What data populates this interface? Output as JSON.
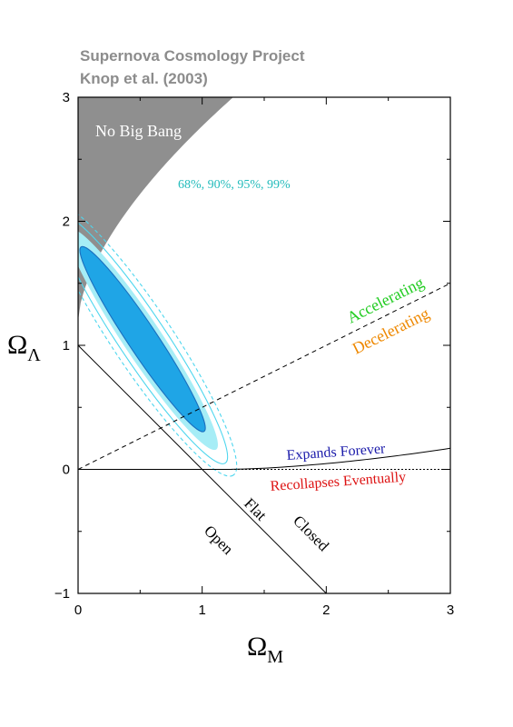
{
  "header": {
    "line1": "Supernova Cosmology Project",
    "line2": "Knop et al. (2003)"
  },
  "chart_data": {
    "type": "contour",
    "xlabel_main": "Ω",
    "xlabel_sub": "M",
    "ylabel_main": "Ω",
    "ylabel_sub": "Λ",
    "xlim": [
      0,
      3
    ],
    "ylim": [
      -1,
      3
    ],
    "xticks": [
      "0",
      "1",
      "2",
      "3"
    ],
    "yticks": [
      "−1",
      "0",
      "1",
      "2",
      "3"
    ],
    "confidence_levels": "68%, 90%, 95%, 99%",
    "best_fit_ellipse": {
      "center": [
        0.52,
        1.05
      ],
      "major_axis_slope": 1.5
    },
    "lines": {
      "flat": {
        "points": [
          [
            0,
            1
          ],
          [
            2,
            -1
          ]
        ]
      },
      "accel_decel": {
        "points": [
          [
            0,
            0
          ],
          [
            3,
            1.5
          ]
        ],
        "style": "dashed"
      },
      "expand_recollapse": {
        "points": [
          [
            0,
            0
          ],
          [
            1.2,
            0
          ],
          [
            2.0,
            0.05
          ],
          [
            3,
            0.17
          ]
        ]
      }
    },
    "regions": {
      "no_big_bang": "No Big Bang",
      "accelerating": "Accelerating",
      "decelerating": "Decelerating",
      "expands_forever": "Expands Forever",
      "recollapses": "Recollapses Eventually",
      "open": "Open",
      "flat": "Flat",
      "closed": "Closed"
    },
    "colors": {
      "contour_68": "#1fa5e6",
      "contour_90": "#4dd6ee",
      "contour_95": "#a6edf6",
      "no_big_bang": "#8f8f8f",
      "accelerating": "#22cc22",
      "decelerating": "#ee8800",
      "expands_forever": "#1a1aaa",
      "recollapses": "#dd1111",
      "confidence_label": "#22bbbb"
    }
  }
}
